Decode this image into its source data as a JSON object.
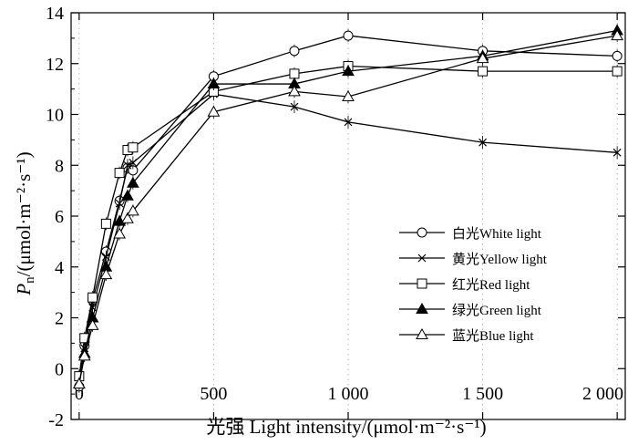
{
  "chart_data": {
    "type": "line",
    "xlabel": "光强 Light intensity/(μmol·m⁻²·s⁻¹)",
    "ylabel_italic": "P",
    "ylabel_subscript": "n",
    "ylabel_rest": "/(μmol·m⁻²·s⁻¹)",
    "xlim": [
      -30,
      2030
    ],
    "ylim": [
      -2,
      14
    ],
    "x_ticks": [
      0,
      500,
      1000,
      1500,
      2000
    ],
    "x_tick_labels": [
      "0",
      "500",
      "1 000",
      "1 500",
      "2 000"
    ],
    "y_ticks": [
      -2,
      0,
      2,
      4,
      6,
      8,
      10,
      12,
      14
    ],
    "y_tick_labels": [
      "-2",
      "0",
      "2",
      "4",
      "6",
      "8",
      "10",
      "12",
      "14"
    ],
    "legend_position": "right",
    "x": [
      0,
      20,
      50,
      100,
      150,
      180,
      200,
      500,
      800,
      1000,
      1500,
      2000
    ],
    "series": [
      {
        "name": "白光White light",
        "marker": "circle",
        "values": [
          -0.7,
          0.9,
          2.7,
          4.6,
          6.6,
          7.9,
          7.8,
          11.5,
          12.5,
          13.1,
          12.5,
          12.3
        ]
      },
      {
        "name": "黄光Yellow light",
        "marker": "cross",
        "values": [
          -0.5,
          0.8,
          2.4,
          4.4,
          6.5,
          8.0,
          8.1,
          10.8,
          10.3,
          9.7,
          8.9,
          8.5
        ]
      },
      {
        "name": "红光Red light",
        "marker": "square",
        "values": [
          -0.3,
          1.2,
          2.8,
          5.7,
          7.7,
          8.6,
          8.7,
          10.9,
          11.6,
          11.9,
          11.7,
          11.7
        ]
      },
      {
        "name": "绿光Green light",
        "marker": "filled-triangle",
        "values": [
          -0.6,
          0.6,
          2.0,
          4.0,
          5.8,
          6.8,
          7.3,
          11.2,
          11.2,
          11.7,
          12.3,
          13.3
        ]
      },
      {
        "name": "蓝光Blue light",
        "marker": "triangle",
        "values": [
          -0.6,
          0.5,
          1.7,
          3.7,
          5.3,
          5.9,
          6.2,
          10.1,
          10.9,
          10.7,
          12.2,
          13.1
        ]
      }
    ]
  }
}
